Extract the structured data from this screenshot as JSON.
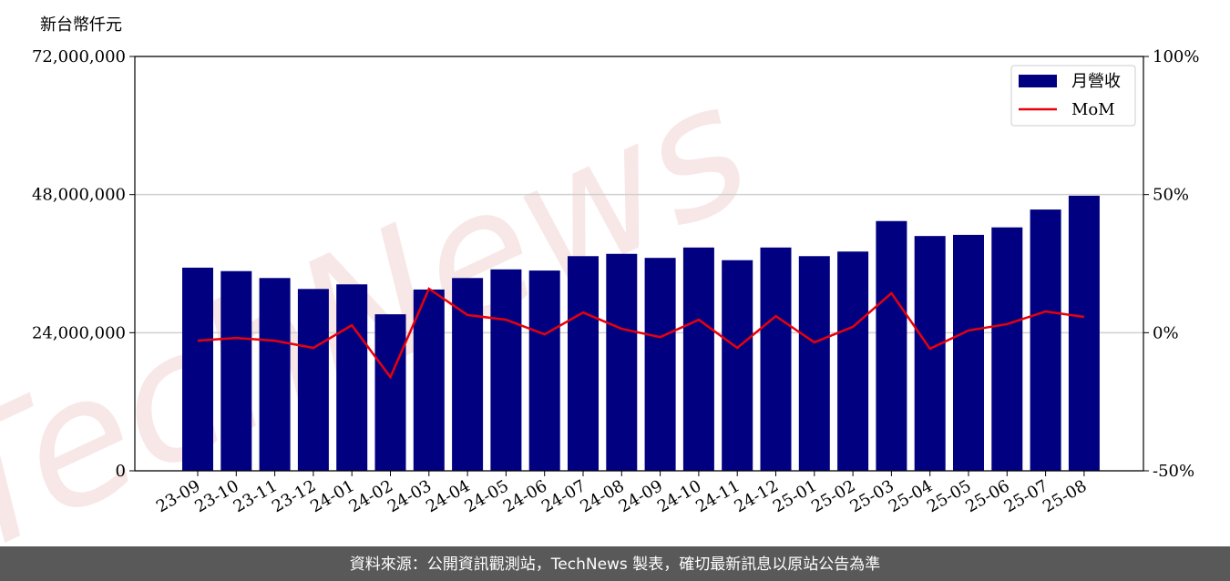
{
  "chart_data": {
    "type": "bar_line",
    "y_axis_label": "新台幣仟元",
    "categories": [
      "23-09",
      "23-10",
      "23-11",
      "23-12",
      "24-01",
      "24-02",
      "24-03",
      "24-04",
      "24-05",
      "24-06",
      "24-07",
      "24-08",
      "24-09",
      "24-10",
      "24-11",
      "24-12",
      "25-01",
      "25-02",
      "25-03",
      "25-04",
      "25-05",
      "25-06",
      "25-07",
      "25-08"
    ],
    "series": [
      {
        "name": "月營收",
        "color": "#000080",
        "type": "bar",
        "values": [
          35300000,
          34700000,
          33500000,
          31600000,
          32400000,
          27200000,
          31500000,
          33500000,
          35000000,
          34800000,
          37300000,
          37700000,
          37000000,
          38800000,
          36600000,
          38800000,
          37300000,
          38100000,
          43400000,
          40800000,
          41000000,
          42300000,
          45400000,
          47800000
        ]
      },
      {
        "name": "MoM",
        "color": "#e8000b",
        "type": "line",
        "axis": "y2",
        "values": [
          -2.9,
          -1.9,
          -2.9,
          -5.5,
          2.7,
          -16.1,
          15.9,
          6.4,
          4.7,
          -0.6,
          7.3,
          1.4,
          -1.6,
          4.7,
          -5.5,
          6.0,
          -3.5,
          2.1,
          14.3,
          -5.8,
          0.8,
          3.1,
          7.7,
          5.7
        ]
      }
    ],
    "ylim": [
      0,
      72000000
    ],
    "yticks": [
      {
        "value": 0,
        "label": "0"
      },
      {
        "value": 24000000,
        "label": "24,000,000"
      },
      {
        "value": 48000000,
        "label": "48,000,000"
      },
      {
        "value": 72000000,
        "label": "72,000,000"
      }
    ],
    "y2lim": [
      -50,
      100
    ],
    "y2ticks": [
      {
        "value": -50,
        "label": "-50%"
      },
      {
        "value": 0,
        "label": "0%"
      },
      {
        "value": 50,
        "label": "50%"
      },
      {
        "value": 100,
        "label": "100%"
      }
    ],
    "grid": true,
    "legend": "upper right",
    "watermark": "TechNews",
    "footer": "資料來源：公開資訊觀測站，TechNews 製表，確切最新訊息以原站公告為準"
  }
}
